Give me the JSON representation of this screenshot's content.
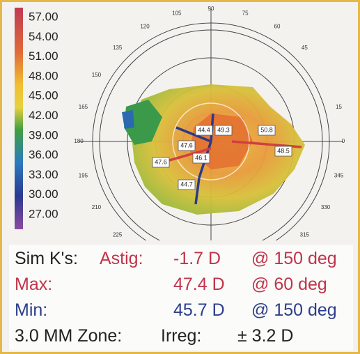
{
  "scale": {
    "labels": [
      "57.00",
      "54.00",
      "51.00",
      "48.00",
      "45.00",
      "42.00",
      "39.00",
      "36.00",
      "33.00",
      "30.00",
      "27.00"
    ]
  },
  "map": {
    "angle_labels": [
      "105",
      "90",
      "75",
      "60",
      "45",
      "120",
      "135",
      "150",
      "165",
      "180",
      "195",
      "210",
      "225",
      "15",
      "0",
      "345",
      "330",
      "315"
    ],
    "values": [
      "44.4",
      "49.3",
      "50.8",
      "47.6",
      "47.6",
      "46.1",
      "48.5",
      "44.7"
    ]
  },
  "sim_k": {
    "rows": [
      [
        "Sim K's:",
        "Astig:",
        "-1.7 D",
        "@ 150 deg"
      ],
      [
        "Max:",
        "47.4 D",
        "@ 60 deg"
      ],
      [
        "Min:",
        "45.7 D",
        "@ 150 deg"
      ],
      [
        "3.0 MM Zone:",
        "Irreg:",
        "± 3.2 D"
      ]
    ]
  }
}
